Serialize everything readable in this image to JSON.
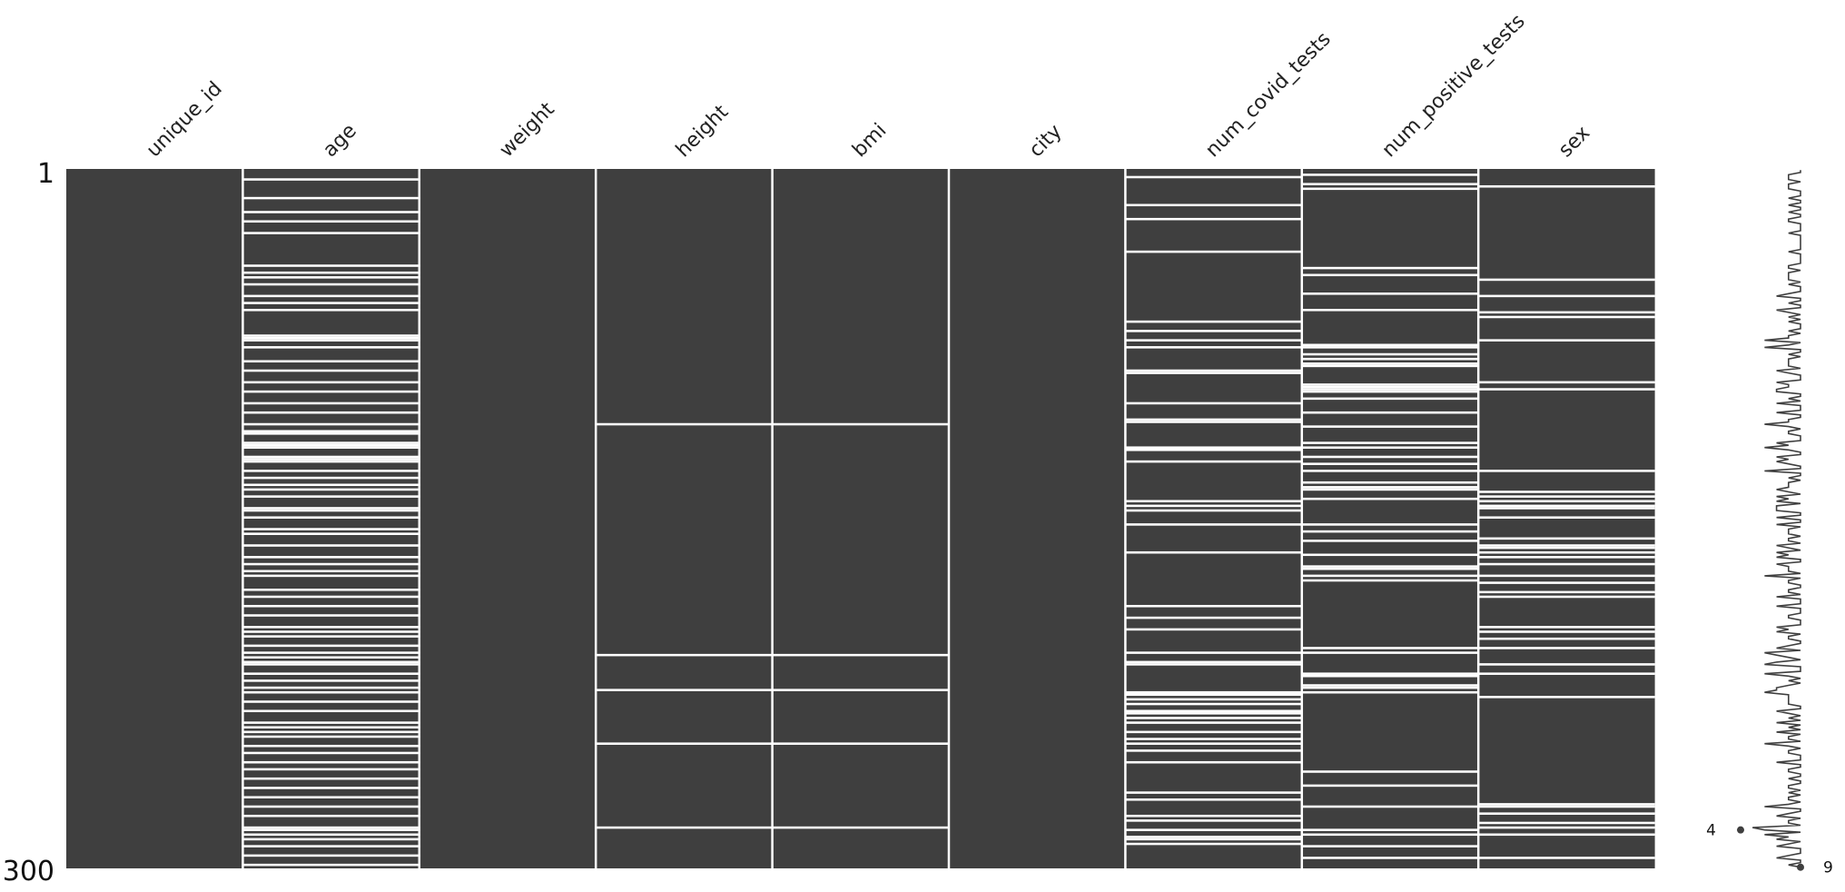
{
  "chart_data": {
    "type": "heatmap",
    "columns": [
      "unique_id",
      "age",
      "weight",
      "height",
      "bmi",
      "city",
      "num_covid_tests",
      "num_positive_tests",
      "sex"
    ],
    "n_rows": 300,
    "row_labels": [
      "1",
      "300"
    ],
    "colors": {
      "present": "#3f3f3f",
      "missing": "#ffffff",
      "background": "#ffffff"
    },
    "missing_rows": {
      "unique_id": [],
      "age": [
        5,
        13,
        19,
        23,
        28,
        42,
        45,
        47,
        50,
        55,
        58,
        61,
        72,
        73,
        74,
        77,
        83,
        87,
        92,
        96,
        101,
        105,
        110,
        113,
        114,
        118,
        119,
        120,
        124,
        125,
        126,
        130,
        133,
        136,
        138,
        141,
        146,
        147,
        150,
        155,
        157,
        162,
        167,
        170,
        173,
        175,
        181,
        184,
        188,
        192,
        197,
        199,
        201,
        205,
        208,
        210,
        212,
        213,
        217,
        220,
        223,
        225,
        229,
        233,
        238,
        240,
        242,
        244,
        248,
        251,
        255,
        258,
        262,
        266,
        270,
        274,
        278,
        283,
        284,
        286,
        288,
        291,
        295,
        299
      ],
      "weight": [],
      "height": [
        110,
        209,
        224,
        247,
        283
      ],
      "bmi": [
        110,
        209,
        224,
        247,
        283
      ],
      "city": [],
      "num_covid_tests": [
        4,
        16,
        22,
        36,
        66,
        70,
        74,
        77,
        87,
        88,
        101,
        108,
        109,
        120,
        121,
        126,
        143,
        145,
        147,
        153,
        165,
        188,
        193,
        198,
        208,
        212,
        213,
        225,
        226,
        228,
        230,
        233,
        234,
        236,
        238,
        242,
        245,
        247,
        250,
        255,
        268,
        271,
        278,
        280,
        284,
        287,
        288,
        290
      ],
      "num_positive_tests": [
        3,
        7,
        9,
        43,
        46,
        54,
        61,
        76,
        77,
        80,
        82,
        84,
        85,
        93,
        94,
        95,
        96,
        99,
        105,
        111,
        118,
        120,
        124,
        127,
        130,
        135,
        137,
        138,
        142,
        153,
        156,
        160,
        166,
        171,
        172,
        175,
        177,
        206,
        208,
        217,
        218,
        222,
        223,
        225,
        259,
        265,
        274,
        284,
        286,
        291,
        296
      ],
      "sex": [
        8,
        48,
        55,
        62,
        64,
        74,
        92,
        95,
        130,
        139,
        141,
        143,
        145,
        146,
        150,
        159,
        162,
        163,
        165,
        167,
        170,
        175,
        178,
        182,
        184,
        197,
        199,
        202,
        206,
        213,
        217,
        227,
        273,
        274,
        277,
        281,
        283,
        286,
        296
      ]
    },
    "sparkline": {
      "min_label": "4",
      "max_label": "9",
      "xlim": [
        4,
        9
      ],
      "min_row": 284,
      "max_row": 300
    }
  }
}
